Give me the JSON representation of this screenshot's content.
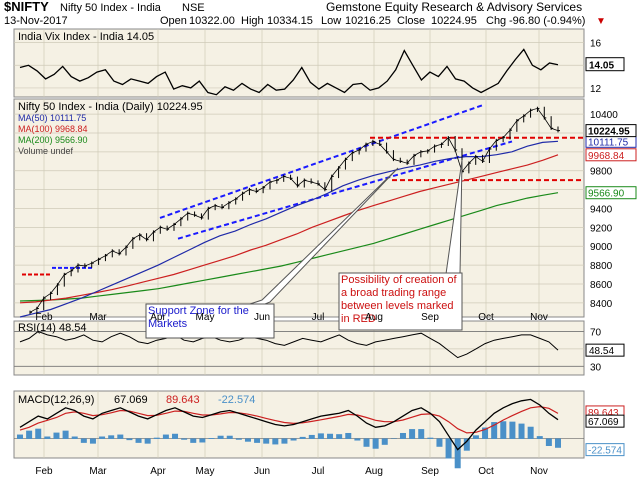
{
  "header": {
    "symbol": "$NIFTY",
    "name": "Nifty 50 Index - India",
    "exchange": "NSE",
    "date": "13-Nov-2017",
    "provider": "Gemstone Equity Research & Advisory Services",
    "open_label": "Open",
    "open": "10322.00",
    "high_label": "High",
    "high": "10334.15",
    "low_label": "Low",
    "low": "10216.25",
    "close_label": "Close",
    "close": "10224.95",
    "chg_label": "Chg",
    "chg": "-96.80 (-0.94%)",
    "chg_arrow": "▼"
  },
  "colors": {
    "panel_bg": "#f5f1e4",
    "grid": "#cfcab8",
    "price": "#000000",
    "ma50": "#1f2aa8",
    "ma100": "#cc2020",
    "ma200": "#1a8a1a",
    "trend_blue": "#1a1aff",
    "trend_red": "#e00000",
    "macd_hist": "#4a90c8"
  },
  "chart_data": {
    "type": "line",
    "x_tick_labels": [
      "Feb",
      "Mar",
      "Apr",
      "May",
      "Jun",
      "Jul",
      "Aug",
      "Sep",
      "Oct",
      "Nov"
    ],
    "vix": {
      "legend": "India Vix Index - India 14.05",
      "last_label": "14.05",
      "yticks": [
        12,
        14,
        16
      ],
      "ylim": [
        11.2,
        17.2
      ],
      "values": [
        13.8,
        14.0,
        13.5,
        12.8,
        13.2,
        13.9,
        13.0,
        12.6,
        12.9,
        13.4,
        13.6,
        12.6,
        12.3,
        12.8,
        12.6,
        12.4,
        13.0,
        13.4,
        11.9,
        12.2,
        12.0,
        12.6,
        11.6,
        11.4,
        12.1,
        11.8,
        12.4,
        11.9,
        11.6,
        12.3,
        11.8,
        11.9,
        12.7,
        13.8,
        12.5,
        11.9,
        12.4,
        12.0,
        11.6,
        12.3,
        12.4,
        11.8,
        12.0,
        12.6,
        13.6,
        15.3,
        14.0,
        12.7,
        13.4,
        13.0,
        13.9,
        12.8,
        12.6,
        12.0,
        11.6,
        12.0,
        12.4,
        13.5,
        14.5,
        15.4,
        14.0,
        13.6,
        14.2,
        14.05
      ]
    },
    "price": {
      "legend": "Nifty 50 Index - India (Daily) 10224.95",
      "ma50_label": "MA(50) 10111.75",
      "ma50_last": "10111.75",
      "ma100_label": "MA(100) 9968.84",
      "ma100_last": "9968.84",
      "ma200_label": "MA(200) 9566.90",
      "ma200_last": "9566.90",
      "volume_label": "Volume undef",
      "last_label": "10224.95",
      "yticks": [
        8400,
        8600,
        8800,
        9000,
        9200,
        9400,
        9600,
        9800,
        10000,
        10200,
        10400
      ],
      "ylim": [
        8250,
        10560
      ],
      "close": [
        8300,
        8340,
        8450,
        8500,
        8590,
        8700,
        8740,
        8800,
        8790,
        8820,
        8860,
        8900,
        8950,
        8920,
        8990,
        9080,
        9120,
        9070,
        9150,
        9200,
        9180,
        9230,
        9290,
        9350,
        9330,
        9300,
        9400,
        9430,
        9410,
        9460,
        9500,
        9560,
        9600,
        9580,
        9620,
        9680,
        9700,
        9740,
        9720,
        9640,
        9700,
        9680,
        9660,
        9600,
        9740,
        9830,
        9920,
        9990,
        10020,
        10080,
        10110,
        10080,
        10000,
        9920,
        9900,
        9880,
        9960,
        10000,
        10010,
        10060,
        10080,
        10150,
        10020,
        9790,
        9880,
        9950,
        9900,
        10030,
        10120,
        10150,
        10230,
        10330,
        10380,
        10440,
        10460,
        10360,
        10250,
        10224.95
      ],
      "ma50": [
        8250,
        8290,
        8330,
        8390,
        8450,
        8520,
        8590,
        8660,
        8730,
        8800,
        8880,
        8960,
        9040,
        9110,
        9160,
        9230,
        9290,
        9360,
        9430,
        9490,
        9560,
        9640,
        9700,
        9750,
        9790,
        9830,
        9860,
        9900,
        9930,
        9950,
        9950,
        9970,
        10000,
        10060,
        10100,
        10111.75
      ],
      "ma100": [
        8400,
        8410,
        8430,
        8450,
        8480,
        8510,
        8540,
        8580,
        8620,
        8660,
        8700,
        8750,
        8800,
        8850,
        8900,
        8960,
        9010,
        9070,
        9130,
        9200,
        9260,
        9320,
        9380,
        9430,
        9480,
        9530,
        9580,
        9620,
        9660,
        9700,
        9740,
        9780,
        9820,
        9860,
        9910,
        9968.84
      ],
      "ma200": [
        8420,
        8425,
        8430,
        8440,
        8450,
        8470,
        8490,
        8510,
        8530,
        8550,
        8580,
        8610,
        8640,
        8670,
        8700,
        8730,
        8760,
        8790,
        8830,
        8870,
        8910,
        8950,
        8990,
        9030,
        9080,
        9130,
        9180,
        9230,
        9280,
        9330,
        9380,
        9430,
        9470,
        9510,
        9540,
        9566.9
      ]
    },
    "rsi": {
      "legend": "RSI(14) 48.54",
      "last_label": "48.54",
      "yticks": [
        30,
        50,
        70
      ],
      "ylim": [
        20,
        82
      ],
      "values": [
        58,
        62,
        70,
        66,
        64,
        60,
        62,
        66,
        60,
        58,
        64,
        68,
        64,
        58,
        56,
        60,
        62,
        66,
        60,
        58,
        62,
        64,
        60,
        58,
        60,
        64,
        62,
        60,
        56,
        54,
        58,
        62,
        60,
        58,
        62,
        66,
        60,
        56,
        54,
        58,
        60,
        62,
        64,
        66,
        68,
        62,
        56,
        48,
        40,
        44,
        50,
        56,
        60,
        62,
        64,
        66,
        66,
        62,
        58,
        48.54
      ]
    },
    "macd": {
      "legend_prefix": "MACD(12,26,9)",
      "macd_value": "67.069",
      "signal_value": "89.643",
      "hist_value": "-22.574",
      "ylim": [
        -70,
        170
      ],
      "macd": [
        40,
        60,
        80,
        70,
        90,
        110,
        100,
        80,
        70,
        90,
        100,
        110,
        95,
        80,
        70,
        85,
        100,
        110,
        95,
        80,
        75,
        85,
        95,
        100,
        90,
        80,
        70,
        60,
        50,
        45,
        50,
        60,
        70,
        80,
        85,
        90,
        100,
        80,
        55,
        40,
        45,
        60,
        80,
        100,
        110,
        90,
        60,
        10,
        -40,
        -10,
        30,
        60,
        90,
        110,
        125,
        135,
        140,
        120,
        90,
        67.069
      ],
      "signal": [
        30,
        40,
        55,
        65,
        75,
        90,
        95,
        90,
        82,
        85,
        92,
        100,
        98,
        90,
        82,
        83,
        90,
        98,
        97,
        90,
        84,
        84,
        88,
        93,
        92,
        87,
        80,
        72,
        64,
        57,
        54,
        56,
        61,
        67,
        73,
        79,
        86,
        84,
        75,
        65,
        60,
        60,
        66,
        76,
        86,
        88,
        80,
        60,
        35,
        20,
        22,
        32,
        48,
        66,
        82,
        97,
        110,
        114,
        108,
        89.643
      ]
    }
  },
  "annotations": {
    "support_zone": "Support Zone for the Markets",
    "range_note": "Possibility of creation of a broad trading range between levels marked in RED"
  }
}
